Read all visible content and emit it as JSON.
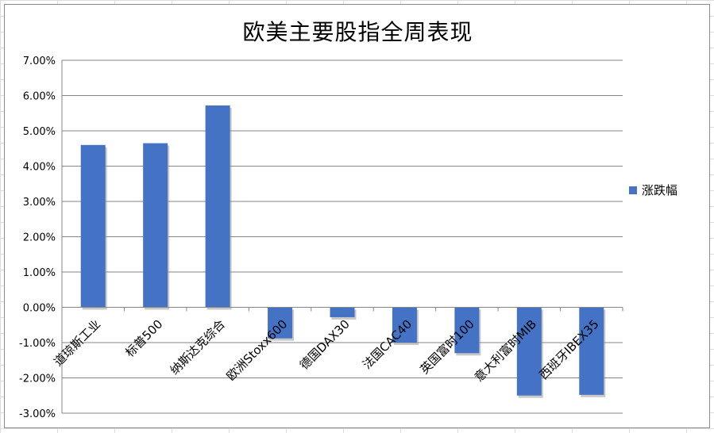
{
  "chart_data": {
    "type": "bar",
    "title": "欧美主要股指全周表现",
    "categories": [
      "道琼斯工业",
      "标普500",
      "纳斯达克综合",
      "欧洲Stoxx600",
      "德国DAX30",
      "法国CAC40",
      "英国富时100",
      "意大利富时MIB",
      "西班牙IBEX35"
    ],
    "series": [
      {
        "name": "涨跌幅",
        "values": [
          4.6,
          4.65,
          5.72,
          -0.88,
          -0.28,
          -1.0,
          -1.3,
          -2.5,
          -2.48
        ]
      }
    ],
    "ylim": [
      -3,
      7
    ],
    "yticks": [
      "7.00%",
      "6.00%",
      "5.00%",
      "4.00%",
      "3.00%",
      "2.00%",
      "1.00%",
      "0.00%",
      "-1.00%",
      "-2.00%",
      "-3.00%"
    ],
    "grid": true,
    "legend_position": "right",
    "bar_color": "#4472c4"
  }
}
